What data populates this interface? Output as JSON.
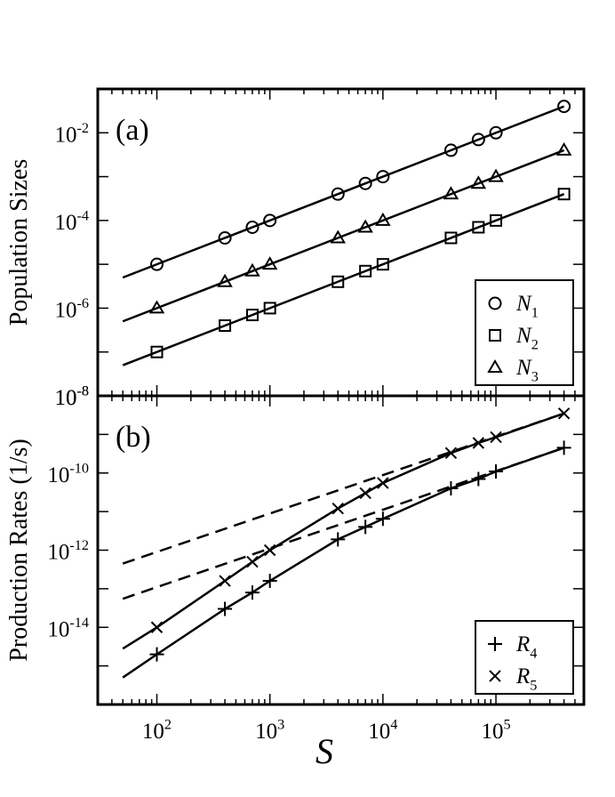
{
  "chart_data": [
    {
      "type": "scatter",
      "panel_label": "(a)",
      "title": "",
      "xlabel": "S",
      "ylabel": "Population Sizes",
      "x_scale": "log",
      "y_scale": "log",
      "xlim": [
        30,
        600000
      ],
      "ylim": [
        1e-08,
        0.1
      ],
      "y_ticks": [
        {
          "value": 0.01,
          "base": "10",
          "exp": "-2"
        },
        {
          "value": 0.0001,
          "base": "10",
          "exp": "-4"
        },
        {
          "value": 1e-06,
          "base": "10",
          "exp": "-6"
        },
        {
          "value": 1e-08,
          "base": "10",
          "exp": "-8"
        }
      ],
      "legend_position": "bottom-right",
      "series": [
        {
          "name": "N1",
          "legend_main": "N",
          "legend_sub": "1",
          "marker": "circle",
          "x": [
            100,
            400,
            700,
            1000,
            4000,
            7000,
            10000,
            40000,
            70000,
            100000,
            400000
          ],
          "y": [
            1e-05,
            4e-05,
            7e-05,
            0.0001,
            0.0004,
            0.0007,
            0.001,
            0.004,
            0.007,
            0.01,
            0.04
          ],
          "fit_x": [
            50,
            400000
          ],
          "fit_y": [
            5e-06,
            0.04
          ]
        },
        {
          "name": "N2",
          "legend_main": "N",
          "legend_sub": "2",
          "marker": "square",
          "x": [
            100,
            400,
            700,
            1000,
            4000,
            7000,
            10000,
            40000,
            70000,
            100000,
            400000
          ],
          "y": [
            1e-07,
            4e-07,
            7e-07,
            1e-06,
            4e-06,
            7e-06,
            1e-05,
            4e-05,
            7e-05,
            0.0001,
            0.0004
          ],
          "fit_x": [
            50,
            400000
          ],
          "fit_y": [
            5e-08,
            0.0004
          ]
        },
        {
          "name": "N3",
          "legend_main": "N",
          "legend_sub": "3",
          "marker": "triangle",
          "x": [
            100,
            400,
            700,
            1000,
            4000,
            7000,
            10000,
            40000,
            70000,
            100000,
            400000
          ],
          "y": [
            1e-06,
            4e-06,
            7e-06,
            1e-05,
            4e-05,
            7e-05,
            0.0001,
            0.0004,
            0.0007,
            0.001,
            0.004
          ],
          "fit_x": [
            50,
            400000
          ],
          "fit_y": [
            5e-07,
            0.004
          ]
        }
      ]
    },
    {
      "type": "line",
      "panel_label": "(b)",
      "title": "",
      "xlabel": "S",
      "ylabel": "Production Rates (1/s)",
      "x_scale": "log",
      "y_scale": "log",
      "xlim": [
        30,
        600000
      ],
      "ylim": [
        1e-16,
        1e-08
      ],
      "x_ticks": [
        {
          "value": 100,
          "base": "10",
          "exp": "2"
        },
        {
          "value": 1000,
          "base": "10",
          "exp": "3"
        },
        {
          "value": 10000,
          "base": "10",
          "exp": "4"
        },
        {
          "value": 100000,
          "base": "10",
          "exp": "5"
        }
      ],
      "y_ticks": [
        {
          "value": 1e-08,
          "base": "10",
          "exp": "-8"
        },
        {
          "value": 1e-10,
          "base": "10",
          "exp": "-10"
        },
        {
          "value": 1e-12,
          "base": "10",
          "exp": "-12"
        },
        {
          "value": 1e-14,
          "base": "10",
          "exp": "-14"
        }
      ],
      "legend_position": "bottom-right",
      "series": [
        {
          "name": "R4",
          "legend_main": "R",
          "legend_sub": "4",
          "marker": "plus",
          "x": [
            100,
            400,
            700,
            1000,
            4000,
            7000,
            10000,
            40000,
            70000,
            100000,
            400000
          ],
          "y": [
            2e-15,
            3e-14,
            8e-14,
            1.6e-13,
            1.9e-12,
            4e-12,
            6.5e-12,
            4e-11,
            7e-11,
            1.1e-10,
            4.5e-10
          ],
          "curve_x": [
            50,
            100,
            400,
            700,
            1000,
            4000,
            7000,
            10000,
            40000,
            70000,
            100000,
            400000
          ],
          "curve_y": [
            5e-16,
            2e-15,
            3e-14,
            8e-14,
            1.6e-13,
            1.9e-12,
            4e-12,
            6.5e-12,
            4e-11,
            7e-11,
            1.1e-10,
            4.5e-10
          ],
          "asymptote_x": [
            50,
            400000
          ],
          "asymptote_y": [
            5.5e-14,
            4.5e-10
          ]
        },
        {
          "name": "R5",
          "legend_main": "R",
          "legend_sub": "5",
          "marker": "cross",
          "x": [
            100,
            400,
            700,
            1000,
            4000,
            7000,
            10000,
            40000,
            70000,
            100000,
            400000
          ],
          "y": [
            1e-14,
            1.6e-13,
            5e-13,
            1e-12,
            1.2e-11,
            3e-11,
            5.5e-11,
            3.3e-10,
            6e-10,
            8.5e-10,
            3.5e-09
          ],
          "curve_x": [
            50,
            100,
            400,
            700,
            1000,
            4000,
            7000,
            10000,
            40000,
            70000,
            100000,
            400000
          ],
          "curve_y": [
            2.8e-15,
            1e-14,
            1.6e-13,
            5e-13,
            1e-12,
            1.2e-11,
            3e-11,
            5.5e-11,
            3.3e-10,
            6e-10,
            8.5e-10,
            3.5e-09
          ],
          "asymptote_x": [
            50,
            400000
          ],
          "asymptote_y": [
            4.5e-13,
            3.5e-09
          ]
        }
      ]
    }
  ]
}
